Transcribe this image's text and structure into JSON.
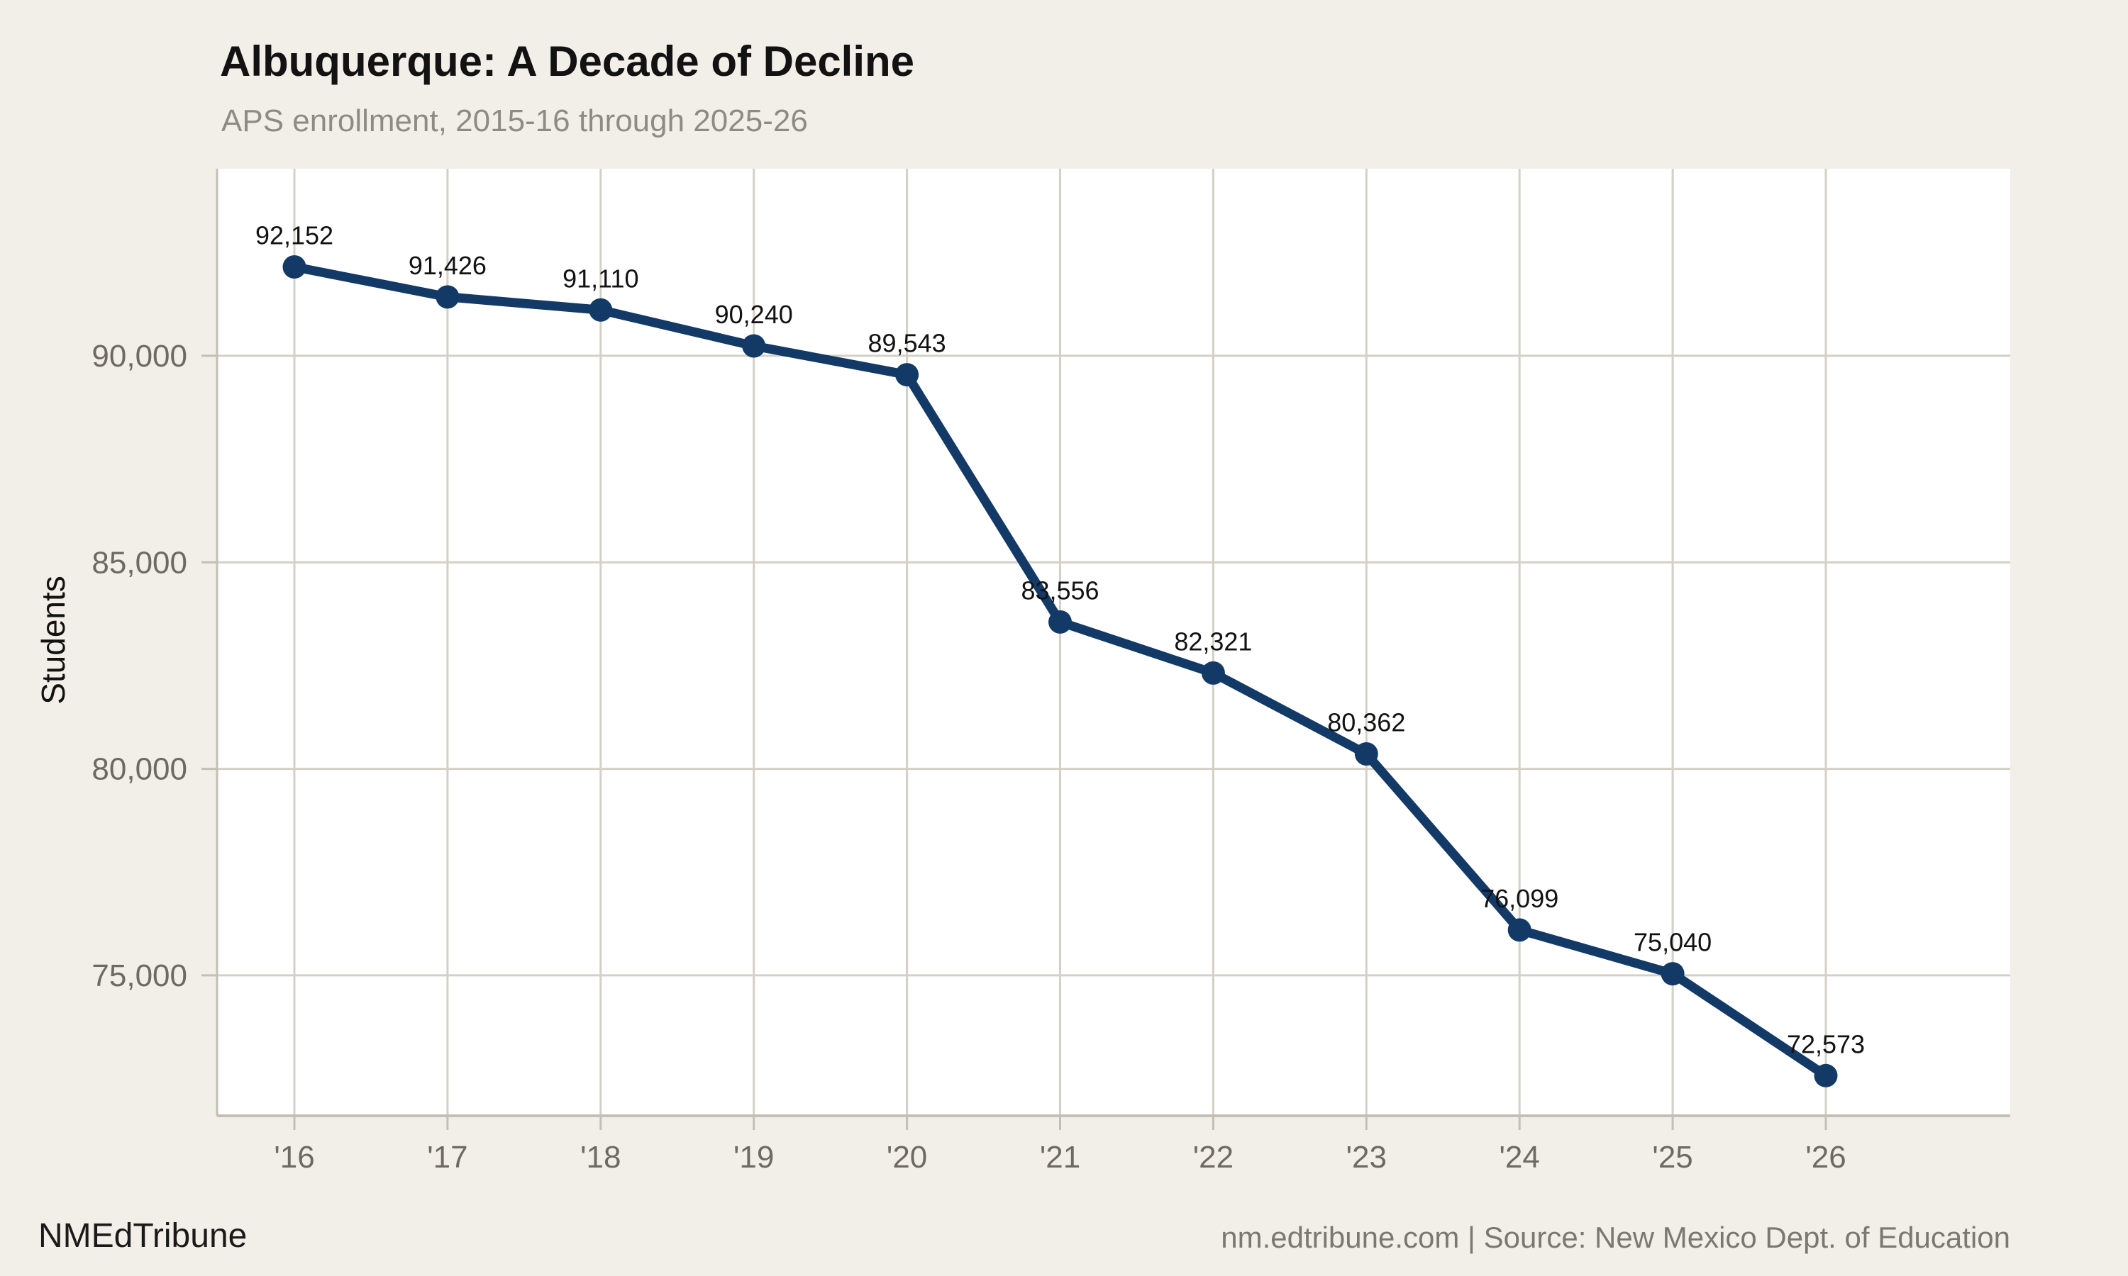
{
  "header": {
    "title": "Albuquerque: A Decade of Decline",
    "subtitle": "APS enrollment, 2015-16 through 2025-26"
  },
  "footer": {
    "brand": "NMEdTribune",
    "source": "nm.edtribune.com | Source: New Mexico Dept. of Education"
  },
  "colors": {
    "background": "#f2efe9",
    "panel": "#ffffff",
    "grid": "#d4d0c6",
    "axis": "#c4bfb5",
    "tick_label": "#6e6961",
    "subtitle": "#8f8b84",
    "source_text": "#7c7770",
    "line": "#133a66",
    "data_label": "#121212"
  },
  "chart_data": {
    "type": "line",
    "title": "Albuquerque: A Decade of Decline",
    "subtitle": "APS enrollment, 2015-16 through 2025-26",
    "xlabel": "",
    "ylabel": "Students",
    "categories": [
      "'16",
      "'17",
      "'18",
      "'19",
      "'20",
      "'21",
      "'22",
      "'23",
      "'24",
      "'25",
      "'26"
    ],
    "series": [
      {
        "name": "APS enrollment",
        "values": [
          92152,
          91426,
          91110,
          90240,
          89543,
          83556,
          82321,
          80362,
          76099,
          75040,
          72573
        ],
        "point_labels": [
          "92,152",
          "91,426",
          "91,110",
          "90,240",
          "89,543",
          "83,556",
          "82,321",
          "80,362",
          "76,099",
          "75,040",
          "72,573"
        ]
      }
    ],
    "y_ticks": [
      {
        "value": 75000,
        "label": "75,000"
      },
      {
        "value": 80000,
        "label": "80,000"
      },
      {
        "value": 85000,
        "label": "85,000"
      },
      {
        "value": 90000,
        "label": "90,000"
      }
    ],
    "ylim": [
      71600,
      94530
    ],
    "grid": true,
    "legend_position": "none"
  }
}
